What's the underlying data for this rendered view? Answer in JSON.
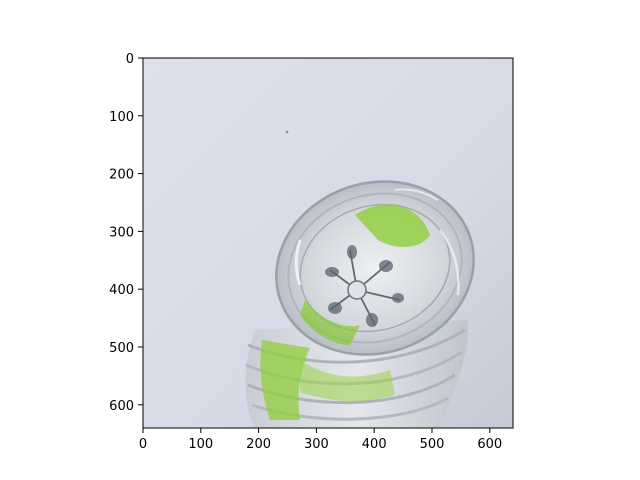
{
  "figure": {
    "axes": {
      "x_ticks": [
        "0",
        "100",
        "200",
        "300",
        "400",
        "500",
        "600"
      ],
      "y_ticks": [
        "0",
        "100",
        "200",
        "300",
        "400",
        "500",
        "600"
      ],
      "xlim": [
        0,
        640
      ],
      "ylim": [
        640,
        0
      ],
      "grid": false
    },
    "image": {
      "subject": "crumpled clear plastic bottle with green label, viewed from the bottom",
      "colors": {
        "background": "#dcdde9",
        "background_shadow": "#c9cbd8",
        "plastic": "#e2e4e8",
        "green_label": "#8fcf3a",
        "dark_detail": "#4c5560"
      }
    }
  }
}
